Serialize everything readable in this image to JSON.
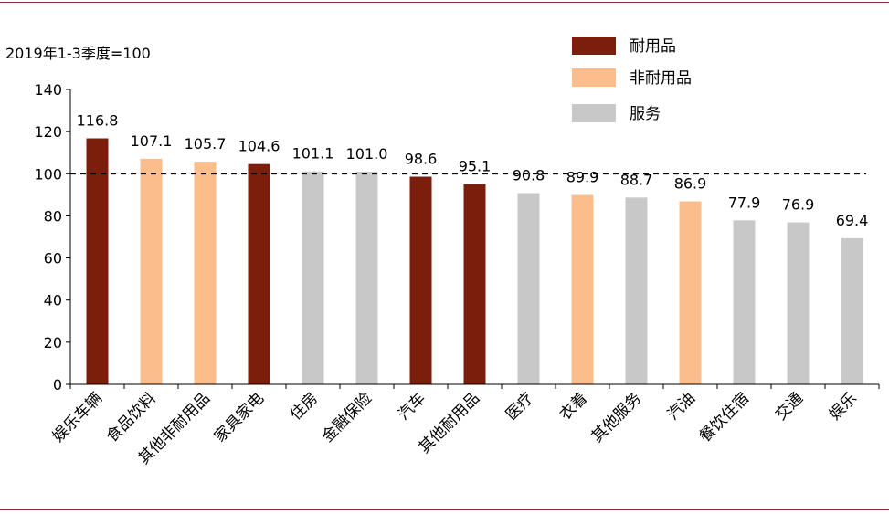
{
  "chart_data": {
    "type": "bar",
    "ylabel": "2019年1-3季度=100",
    "ylim": [
      0,
      140
    ],
    "yticks": [
      0,
      20,
      40,
      60,
      80,
      100,
      120,
      140
    ],
    "reference_line": 100,
    "categories": [
      "娱乐车辆",
      "食品饮料",
      "其他非耐用品",
      "家具家电",
      "住房",
      "金融保险",
      "汽车",
      "其他耐用品",
      "医疗",
      "衣着",
      "其他服务",
      "汽油",
      "餐饮住宿",
      "交通",
      "娱乐"
    ],
    "values": [
      116.8,
      107.1,
      105.7,
      104.6,
      101.1,
      101.0,
      98.6,
      95.1,
      90.8,
      89.9,
      88.7,
      86.9,
      77.9,
      76.9,
      69.4
    ],
    "value_labels": [
      "116.8",
      "107.1",
      "105.7",
      "104.6",
      "101.1",
      "101.0",
      "98.6",
      "95.1",
      "90.8",
      "89.9",
      "88.7",
      "86.9",
      "77.9",
      "76.9",
      "69.4"
    ],
    "groups": [
      "耐用品",
      "非耐用品",
      "非耐用品",
      "耐用品",
      "服务",
      "服务",
      "耐用品",
      "耐用品",
      "服务",
      "非耐用品",
      "服务",
      "非耐用品",
      "服务",
      "服务",
      "服务"
    ],
    "legend": [
      {
        "name": "耐用品",
        "color": "#7b1e0c"
      },
      {
        "name": "非耐用品",
        "color": "#fbbd8c"
      },
      {
        "name": "服务",
        "color": "#c8c8c8"
      }
    ],
    "legend_position": "top-right",
    "grid": false
  }
}
